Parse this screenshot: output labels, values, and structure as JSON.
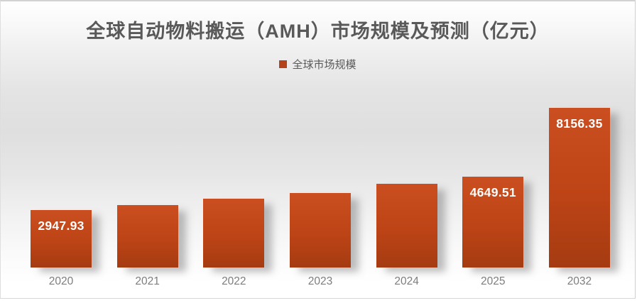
{
  "chart": {
    "title": "全球自动物料搬运（AMH）市场规模及预测（亿元）",
    "legend_label": "全球市场规模"
  },
  "chart_data": {
    "type": "bar",
    "title": "全球自动物料搬运（AMH）市场规模及预测（亿元）",
    "legend": [
      "全球市场规模"
    ],
    "legend_position": "top-center",
    "categories": [
      "2020",
      "2021",
      "2022",
      "2023",
      "2024",
      "2025",
      "2032"
    ],
    "series": [
      {
        "name": "全球市场规模",
        "values": [
          2947.93,
          3190,
          3515,
          3800,
          4270,
          4649.51,
          8156.35
        ]
      }
    ],
    "data_labels": [
      "2947.93",
      "",
      "",
      "",
      "",
      "4649.51",
      "8156.35"
    ],
    "xlabel": "",
    "ylabel": "",
    "ylim": [
      0,
      8300
    ],
    "grid": false,
    "y_axis_shown": false
  },
  "colors": {
    "bar_top": "#ca4e20",
    "bar_bottom": "#a53b11",
    "legend_marker": "#b4431c",
    "title_text": "#595959",
    "axis_text": "#7d7d7d",
    "data_label_text": "#ffffff",
    "background_mid": "#e0e0e0",
    "card_border": "#d2d2d2"
  }
}
